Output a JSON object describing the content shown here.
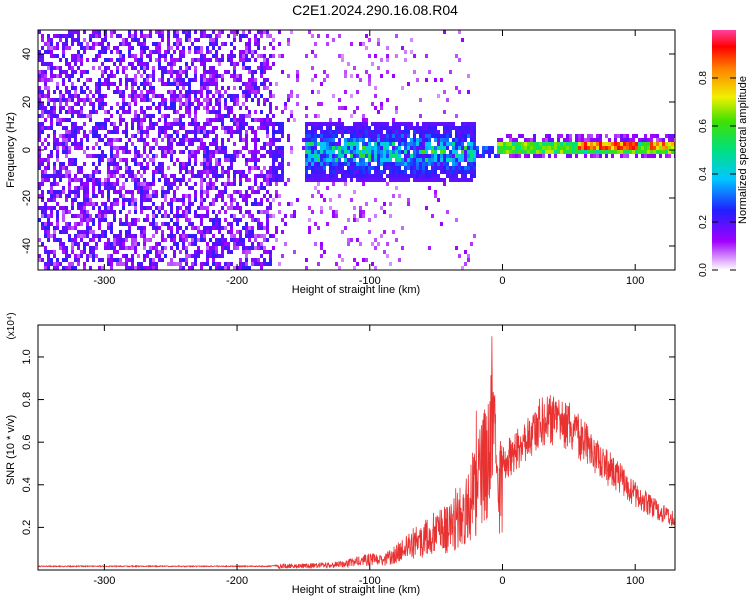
{
  "title": "C2E1.2024.290.16.08.R04",
  "chart_data": [
    {
      "type": "heatmap",
      "xlabel": "Height of straight line (km)",
      "ylabel": "Frequency (Hz)",
      "xlim": [
        -350,
        130
      ],
      "ylim": [
        -50,
        50
      ],
      "xticks": [
        -300,
        -200,
        -100,
        0,
        100
      ],
      "yticks": [
        -40,
        -20,
        0,
        20,
        40
      ],
      "colorbar": {
        "label": "Normalized spectral amplitude",
        "range": [
          0.0,
          1.0
        ],
        "ticks": [
          0.0,
          0.2,
          0.4,
          0.6,
          0.8
        ]
      },
      "description_regions": [
        {
          "x_range": [
            -350,
            -175
          ],
          "freq_range": [
            -50,
            50
          ],
          "amplitude": [
            0.1,
            0.25
          ]
        },
        {
          "x_range": [
            -150,
            -20
          ],
          "freq_range": [
            -12,
            12
          ],
          "amplitude": [
            0.2,
            0.55
          ]
        },
        {
          "x_range": [
            -10,
            130
          ],
          "freq_range": [
            -1,
            5
          ],
          "amplitude": [
            0.4,
            0.95
          ]
        }
      ]
    },
    {
      "type": "line",
      "xlabel": "Height of straight line (km)",
      "ylabel": "SNR (10 * v/v)",
      "y_multiplier": "(x10⁴)",
      "xlim": [
        -350,
        130
      ],
      "ylim": [
        0,
        1.15
      ],
      "xticks": [
        -300,
        -200,
        -100,
        0,
        100
      ],
      "yticks": [
        0.2,
        0.4,
        0.6,
        0.8,
        1.0
      ],
      "color": "#e83232",
      "series": [
        {
          "x": [
            -350,
            -300,
            -250,
            -200,
            -175,
            -165,
            -150,
            -125,
            -110,
            -100,
            -90,
            -80,
            -70,
            -60,
            -50,
            -40,
            -30,
            -25,
            -20,
            -15,
            -10,
            -8,
            -5,
            0,
            10,
            20,
            30,
            40,
            50,
            60,
            70,
            80,
            90,
            100,
            110,
            120,
            130
          ],
          "values": [
            0.02,
            0.02,
            0.02,
            0.02,
            0.02,
            0.03,
            0.03,
            0.04,
            0.06,
            0.08,
            0.07,
            0.12,
            0.2,
            0.22,
            0.3,
            0.3,
            0.42,
            0.55,
            0.6,
            0.72,
            0.85,
            1.1,
            0.78,
            0.6,
            0.65,
            0.75,
            0.82,
            0.83,
            0.8,
            0.72,
            0.62,
            0.56,
            0.5,
            0.42,
            0.36,
            0.31,
            0.28
          ]
        }
      ]
    }
  ]
}
